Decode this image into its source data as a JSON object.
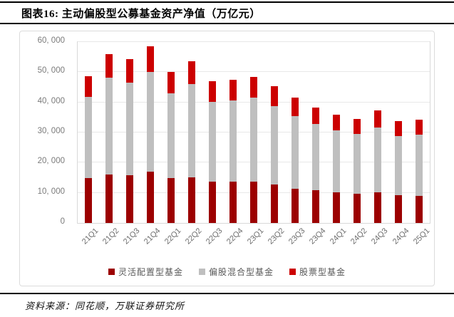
{
  "header": {
    "title": "图表16: 主动偏股型公募基金资产净值（万亿元）"
  },
  "footer": {
    "source": "资料来源：同花顺，万联证券研究所"
  },
  "chart_data": {
    "type": "bar",
    "stacked": true,
    "title": "主动偏股型公募基金资产净值（万亿元）",
    "categories": [
      "21Q1",
      "21Q2",
      "21Q3",
      "21Q4",
      "22Q1",
      "22Q2",
      "22Q3",
      "22Q4",
      "23Q1",
      "23Q2",
      "23Q3",
      "23Q4",
      "24Q1",
      "24Q2",
      "24Q3",
      "24Q4",
      "25Q1"
    ],
    "series": [
      {
        "name": "灵活配置型基金",
        "color": "#9C0000",
        "values": [
          14900,
          16100,
          15800,
          17000,
          15000,
          15200,
          13800,
          13600,
          13600,
          12700,
          11400,
          10800,
          10100,
          9800,
          10100,
          9100,
          9000
        ]
      },
      {
        "name": "偏股混合型基金",
        "color": "#BFBFBF",
        "values": [
          27000,
          32100,
          30700,
          33200,
          28100,
          30800,
          26300,
          27000,
          28000,
          26000,
          24000,
          22000,
          20700,
          19800,
          21600,
          19700,
          20200
        ]
      },
      {
        "name": "股票型基金",
        "color": "#CC0000",
        "values": [
          6700,
          7900,
          7900,
          8400,
          7100,
          7700,
          6800,
          6800,
          6800,
          6700,
          6100,
          5500,
          5100,
          5000,
          5600,
          4900,
          5100
        ]
      }
    ],
    "totals": [
      48600,
      56100,
      54400,
      58600,
      50200,
      53700,
      46900,
      47400,
      48400,
      45400,
      41500,
      38300,
      35900,
      34600,
      37300,
      33700,
      34300
    ],
    "ylim": [
      0,
      60000
    ],
    "ytick_step": 10000,
    "ytick_labels": [
      "0",
      "10, 000",
      "20, 000",
      "30, 000",
      "40, 000",
      "50, 000",
      "60, 000"
    ],
    "xlabel": "",
    "ylabel": "",
    "grid": true,
    "legend_position": "bottom"
  }
}
